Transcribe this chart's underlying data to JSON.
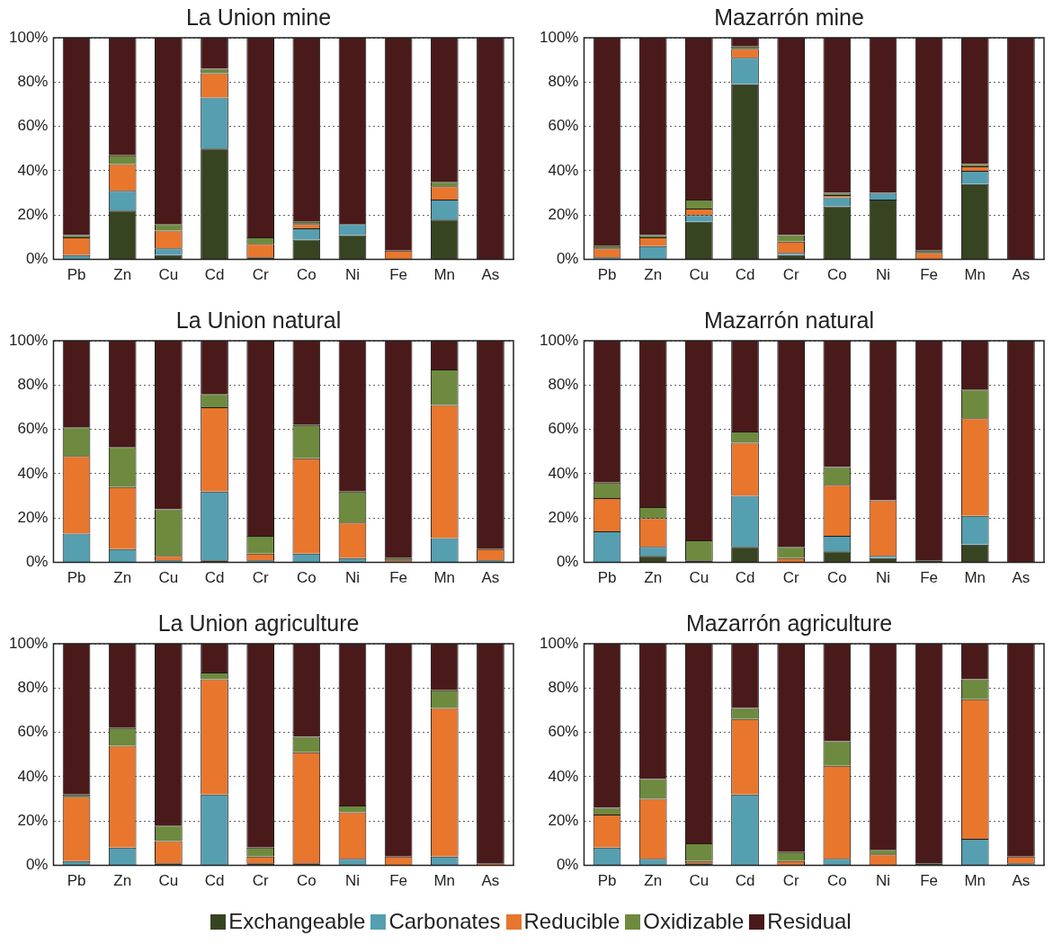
{
  "chart_data": [
    {
      "type": "bar",
      "title": "La Union mine",
      "stacked": true,
      "categories": [
        "Pb",
        "Zn",
        "Cu",
        "Cd",
        "Cr",
        "Co",
        "Ni",
        "Fe",
        "Mn",
        "As"
      ],
      "ylim": [
        0,
        100
      ],
      "yticks": [
        {
          "value": 0,
          "label": "0%"
        },
        {
          "value": 20,
          "label": "20%"
        },
        {
          "value": 40,
          "label": "40%"
        },
        {
          "value": 60,
          "label": "60%"
        },
        {
          "value": 80,
          "label": "80%"
        },
        {
          "value": 100,
          "label": "100%"
        }
      ],
      "grid": "y",
      "series": [
        {
          "color": "#374421",
          "values": [
            0,
            22,
            2,
            50,
            1,
            9,
            11,
            0,
            18,
            0
          ]
        },
        {
          "color": "#559fb0",
          "values": [
            2,
            9,
            3,
            23,
            0,
            5,
            5,
            0,
            9,
            0
          ]
        },
        {
          "color": "#e8762d",
          "values": [
            8,
            12,
            8,
            11,
            6,
            2,
            0,
            4,
            6,
            0
          ]
        },
        {
          "color": "#6e8a3e",
          "values": [
            1,
            4,
            3,
            2,
            3,
            1,
            0,
            0,
            2,
            0
          ]
        },
        {
          "color": "#4a1a1a",
          "values": [
            89,
            53,
            84,
            14,
            90,
            83,
            84,
            96,
            65,
            100
          ]
        }
      ]
    },
    {
      "type": "bar",
      "title": "Mazarrón mine",
      "stacked": true,
      "categories": [
        "Pb",
        "Zn",
        "Cu",
        "Cd",
        "Cr",
        "Co",
        "Ni",
        "Fe",
        "Mn",
        "As"
      ],
      "ylim": [
        0,
        100
      ],
      "yticks": [
        {
          "value": 0,
          "label": "0%"
        },
        {
          "value": 20,
          "label": "20%"
        },
        {
          "value": 40,
          "label": "40%"
        },
        {
          "value": 60,
          "label": "60%"
        },
        {
          "value": 80,
          "label": "80%"
        },
        {
          "value": 100,
          "label": "100%"
        }
      ],
      "grid": "y",
      "series": [
        {
          "color": "#374421",
          "values": [
            0,
            0,
            17,
            79,
            2,
            24,
            27,
            0,
            34,
            0
          ]
        },
        {
          "color": "#559fb0",
          "values": [
            1,
            6,
            3,
            12,
            1,
            4,
            3,
            0,
            6,
            0
          ]
        },
        {
          "color": "#e8762d",
          "values": [
            4,
            4,
            3,
            4,
            5,
            1,
            0,
            3,
            2,
            0
          ]
        },
        {
          "color": "#6e8a3e",
          "values": [
            1,
            1,
            4,
            1,
            3,
            1,
            0,
            1,
            1,
            0
          ]
        },
        {
          "color": "#4a1a1a",
          "values": [
            94,
            89,
            73,
            4,
            89,
            70,
            70,
            96,
            57,
            100
          ]
        }
      ]
    },
    {
      "type": "bar",
      "title": "La Union natural",
      "stacked": true,
      "categories": [
        "Pb",
        "Zn",
        "Cu",
        "Cd",
        "Cr",
        "Co",
        "Ni",
        "Fe",
        "Mn",
        "As"
      ],
      "ylim": [
        0,
        100
      ],
      "yticks": [
        {
          "value": 0,
          "label": "0%"
        },
        {
          "value": 20,
          "label": "20%"
        },
        {
          "value": 40,
          "label": "40%"
        },
        {
          "value": 60,
          "label": "60%"
        },
        {
          "value": 80,
          "label": "80%"
        },
        {
          "value": 100,
          "label": "100%"
        }
      ],
      "grid": "y",
      "series": [
        {
          "color": "#374421",
          "values": [
            0,
            0,
            0,
            1,
            0,
            0,
            0,
            0,
            0,
            0
          ]
        },
        {
          "color": "#559fb0",
          "values": [
            13,
            6,
            1,
            31,
            1,
            4,
            2,
            0,
            11,
            1
          ]
        },
        {
          "color": "#e8762d",
          "values": [
            35,
            28,
            2,
            38,
            3,
            43,
            16,
            1,
            60,
            5
          ]
        },
        {
          "color": "#6e8a3e",
          "values": [
            13,
            18,
            21,
            6,
            8,
            15,
            14,
            1,
            16,
            0
          ]
        },
        {
          "color": "#4a1a1a",
          "values": [
            39,
            48,
            76,
            24,
            88,
            38,
            68,
            98,
            13,
            94
          ]
        }
      ]
    },
    {
      "type": "bar",
      "title": "Mazarrón natural",
      "stacked": true,
      "categories": [
        "Pb",
        "Zn",
        "Cu",
        "Cd",
        "Cr",
        "Co",
        "Ni",
        "Fe",
        "Mn",
        "As"
      ],
      "ylim": [
        0,
        100
      ],
      "yticks": [
        {
          "value": 0,
          "label": "0%"
        },
        {
          "value": 20,
          "label": "20%"
        },
        {
          "value": 40,
          "label": "40%"
        },
        {
          "value": 60,
          "label": "60%"
        },
        {
          "value": 80,
          "label": "80%"
        },
        {
          "value": 100,
          "label": "100%"
        }
      ],
      "grid": "y",
      "series": [
        {
          "color": "#374421",
          "values": [
            0,
            3,
            1,
            7,
            0,
            5,
            2,
            1,
            8,
            0
          ]
        },
        {
          "color": "#559fb0",
          "values": [
            14,
            4,
            0,
            23,
            0,
            7,
            1,
            0,
            13,
            0
          ]
        },
        {
          "color": "#e8762d",
          "values": [
            15,
            13,
            0,
            24,
            2,
            23,
            25,
            0,
            44,
            0
          ]
        },
        {
          "color": "#6e8a3e",
          "values": [
            7,
            5,
            9,
            5,
            5,
            8,
            0,
            0,
            13,
            0
          ]
        },
        {
          "color": "#4a1a1a",
          "values": [
            64,
            75,
            90,
            41,
            93,
            57,
            72,
            99,
            22,
            100
          ]
        }
      ]
    },
    {
      "type": "bar",
      "title": "La Union agriculture",
      "stacked": true,
      "categories": [
        "Pb",
        "Zn",
        "Cu",
        "Cd",
        "Cr",
        "Co",
        "Ni",
        "Fe",
        "Mn",
        "As"
      ],
      "ylim": [
        0,
        100
      ],
      "yticks": [
        {
          "value": 0,
          "label": "0%"
        },
        {
          "value": 20,
          "label": "20%"
        },
        {
          "value": 40,
          "label": "40%"
        },
        {
          "value": 60,
          "label": "60%"
        },
        {
          "value": 80,
          "label": "80%"
        },
        {
          "value": 100,
          "label": "100%"
        }
      ],
      "grid": "y",
      "series": [
        {
          "color": "#374421",
          "values": [
            0,
            0,
            1,
            0,
            1,
            1,
            0,
            0,
            0,
            0
          ]
        },
        {
          "color": "#559fb0",
          "values": [
            2,
            8,
            0,
            32,
            0,
            0,
            3,
            0,
            4,
            0
          ]
        },
        {
          "color": "#e8762d",
          "values": [
            29,
            46,
            10,
            52,
            3,
            50,
            21,
            4,
            67,
            1
          ]
        },
        {
          "color": "#6e8a3e",
          "values": [
            1,
            8,
            7,
            3,
            4,
            7,
            3,
            0,
            8,
            0
          ]
        },
        {
          "color": "#4a1a1a",
          "values": [
            68,
            38,
            82,
            13,
            92,
            42,
            73,
            96,
            21,
            99
          ]
        }
      ]
    },
    {
      "type": "bar",
      "title": "Mazarrón agriculture",
      "stacked": true,
      "categories": [
        "Pb",
        "Zn",
        "Cu",
        "Cd",
        "Cr",
        "Co",
        "Ni",
        "Fe",
        "Mn",
        "As"
      ],
      "ylim": [
        0,
        100
      ],
      "yticks": [
        {
          "value": 0,
          "label": "0%"
        },
        {
          "value": 20,
          "label": "20%"
        },
        {
          "value": 40,
          "label": "40%"
        },
        {
          "value": 60,
          "label": "60%"
        },
        {
          "value": 80,
          "label": "80%"
        },
        {
          "value": 100,
          "label": "100%"
        }
      ],
      "grid": "y",
      "legend": "bottom",
      "series": [
        {
          "name": "Exchangeable",
          "color": "#374421",
          "values": [
            0,
            0,
            1,
            0,
            0,
            0,
            0,
            1,
            0,
            0
          ]
        },
        {
          "name": "Carbonates",
          "color": "#559fb0",
          "values": [
            8,
            3,
            0,
            32,
            0,
            3,
            0,
            0,
            12,
            1
          ]
        },
        {
          "name": "Reducible",
          "color": "#e8762d",
          "values": [
            15,
            27,
            1,
            34,
            2,
            42,
            5,
            0,
            63,
            3
          ]
        },
        {
          "name": "Oxidizable",
          "color": "#6e8a3e",
          "values": [
            3,
            9,
            8,
            5,
            4,
            11,
            2,
            0,
            9,
            0
          ]
        },
        {
          "name": "Residual",
          "color": "#4a1a1a",
          "values": [
            74,
            61,
            90,
            29,
            94,
            44,
            93,
            99,
            16,
            96
          ]
        }
      ]
    }
  ]
}
